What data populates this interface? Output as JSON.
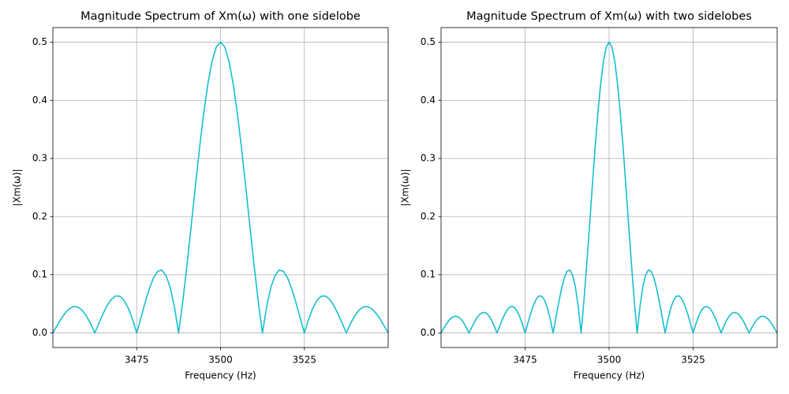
{
  "chart_data": [
    {
      "type": "line",
      "title": "Magnitude Spectrum of Xm(ω) with one sidelobe",
      "xlabel": "Frequency (Hz)",
      "ylabel": "|Xm(ω)|",
      "color": "#17becf",
      "grid": true,
      "xlim": [
        3450,
        3550
      ],
      "xticks": [
        3475,
        3500,
        3525
      ],
      "ylim": [
        -0.025,
        0.525
      ],
      "yticks": [
        {
          "value": 0,
          "label": "0.0"
        },
        0.1,
        0.2,
        0.3,
        0.4,
        0.5
      ],
      "x": [
        3450,
        3451.25,
        3452.5,
        3453.75,
        3455,
        3456.25,
        3457.5,
        3458.75,
        3460,
        3461.25,
        3462.5,
        3463.75,
        3465,
        3466.25,
        3467.5,
        3468.75,
        3470,
        3471.25,
        3472.5,
        3473.75,
        3475,
        3476.25,
        3477.5,
        3478.75,
        3480,
        3481.25,
        3482.5,
        3483.75,
        3485,
        3486.25,
        3487.5,
        3488.75,
        3490,
        3491.25,
        3492.5,
        3493.75,
        3495,
        3496.25,
        3497.5,
        3498.75,
        3500,
        3501.25,
        3502.5,
        3503.75,
        3505,
        3506.25,
        3507.5,
        3508.75,
        3510,
        3511.25,
        3512.5,
        3513.75,
        3515,
        3516.25,
        3517.5,
        3518.75,
        3520,
        3521.25,
        3522.5,
        3523.75,
        3525,
        3526.25,
        3527.5,
        3528.75,
        3530,
        3531.25,
        3532.5,
        3533.75,
        3535,
        3536.25,
        3537.5,
        3538.75,
        3540,
        3541.25,
        3542.5,
        3543.75,
        3545,
        3546.25,
        3547.5,
        3548.75,
        3550
      ],
      "values": [
        0,
        0.0126,
        0.0246,
        0.0348,
        0.042,
        0.0455,
        0.0445,
        0.039,
        0.0292,
        0.0159,
        0,
        0.017,
        0.0334,
        0.0477,
        0.0582,
        0.0637,
        0.0631,
        0.056,
        0.0425,
        0.0234,
        0,
        0.0259,
        0.052,
        0.0757,
        0.0946,
        0.1061,
        0.1081,
        0.099,
        0.078,
        0.0447,
        0,
        0.0546,
        0.1169,
        0.1839,
        0.2523,
        0.3183,
        0.3784,
        0.4292,
        0.4677,
        0.4918,
        0.5,
        0.4918,
        0.4677,
        0.4292,
        0.3784,
        0.3183,
        0.2523,
        0.1839,
        0.1169,
        0.0546,
        0,
        0.0447,
        0.078,
        0.099,
        0.1081,
        0.1061,
        0.0946,
        0.0757,
        0.052,
        0.0259,
        0,
        0.0234,
        0.0425,
        0.056,
        0.0631,
        0.0637,
        0.0582,
        0.0477,
        0.0334,
        0.017,
        0,
        0.0159,
        0.0292,
        0.039,
        0.0445,
        0.0455,
        0.042,
        0.0348,
        0.0246,
        0.0126,
        0
      ]
    },
    {
      "type": "line",
      "title": "Magnitude Spectrum of Xm(ω) with two sidelobes",
      "xlabel": "Frequency (Hz)",
      "ylabel": "|Xm(ω)|",
      "color": "#17becf",
      "grid": true,
      "xlim": [
        3450,
        3550
      ],
      "xticks": [
        3475,
        3500,
        3525
      ],
      "ylim": [
        -0.025,
        0.525
      ],
      "yticks": [
        {
          "value": 0,
          "label": "0.0"
        },
        0.1,
        0.2,
        0.3,
        0.4,
        0.5
      ],
      "x": [
        3450,
        3450.83,
        3451.67,
        3452.5,
        3453.33,
        3454.17,
        3455,
        3455.83,
        3456.67,
        3457.5,
        3458.33,
        3459.17,
        3460,
        3460.83,
        3461.67,
        3462.5,
        3463.33,
        3464.17,
        3465,
        3465.83,
        3466.67,
        3467.5,
        3468.33,
        3469.17,
        3470,
        3470.83,
        3471.67,
        3472.5,
        3473.33,
        3474.17,
        3475,
        3475.83,
        3476.67,
        3477.5,
        3478.33,
        3479.17,
        3480,
        3480.83,
        3481.67,
        3482.5,
        3483.33,
        3484.17,
        3485,
        3485.83,
        3486.67,
        3487.5,
        3488.33,
        3489.17,
        3490,
        3490.83,
        3491.67,
        3492.5,
        3493.33,
        3494.17,
        3495,
        3495.83,
        3496.67,
        3497.5,
        3498.33,
        3499.17,
        3500,
        3500.83,
        3501.67,
        3502.5,
        3503.33,
        3504.17,
        3505,
        3505.83,
        3506.67,
        3507.5,
        3508.33,
        3509.17,
        3510,
        3510.83,
        3511.67,
        3512.5,
        3513.33,
        3514.17,
        3515,
        3515.83,
        3516.67,
        3517.5,
        3518.33,
        3519.17,
        3520,
        3520.83,
        3521.67,
        3522.5,
        3523.33,
        3524.17,
        3525,
        3525.83,
        3526.67,
        3527.5,
        3528.33,
        3529.17,
        3530,
        3530.83,
        3531.67,
        3532.5,
        3533.33,
        3534.17,
        3535,
        3535.83,
        3536.67,
        3537.5,
        3538.33,
        3539.17,
        3540,
        3540.83,
        3541.67,
        3542.5,
        3543.33,
        3544.17,
        3545,
        3545.83,
        3546.67,
        3547.5,
        3548.33,
        3549.17,
        3550
      ],
      "values": [
        0,
        0.0083,
        0.0161,
        0.0226,
        0.027,
        0.0289,
        0.028,
        0.0243,
        0.018,
        0.0096,
        0,
        0.01,
        0.0195,
        0.0274,
        0.0329,
        0.0354,
        0.0344,
        0.0299,
        0.0223,
        0.012,
        0,
        0.0126,
        0.0246,
        0.0348,
        0.042,
        0.0455,
        0.0445,
        0.039,
        0.0292,
        0.0159,
        0,
        0.017,
        0.0334,
        0.0477,
        0.0582,
        0.0637,
        0.0631,
        0.056,
        0.0425,
        0.0234,
        0,
        0.0259,
        0.052,
        0.0757,
        0.0946,
        0.1061,
        0.1081,
        0.099,
        0.078,
        0.0447,
        0,
        0.0546,
        0.1169,
        0.1839,
        0.2523,
        0.3183,
        0.3784,
        0.4292,
        0.4677,
        0.4918,
        0.5,
        0.4918,
        0.4677,
        0.4292,
        0.3784,
        0.3183,
        0.2523,
        0.1839,
        0.1169,
        0.0546,
        0,
        0.0447,
        0.078,
        0.099,
        0.1081,
        0.1061,
        0.0946,
        0.0757,
        0.052,
        0.0259,
        0,
        0.0234,
        0.0425,
        0.056,
        0.0631,
        0.0637,
        0.0582,
        0.0477,
        0.0334,
        0.017,
        0,
        0.0159,
        0.0292,
        0.039,
        0.0445,
        0.0455,
        0.042,
        0.0348,
        0.0246,
        0.0126,
        0,
        0.012,
        0.0223,
        0.0299,
        0.0344,
        0.0354,
        0.0329,
        0.0274,
        0.0195,
        0.01,
        0,
        0.0096,
        0.018,
        0.0243,
        0.028,
        0.0289,
        0.027,
        0.0226,
        0.0161,
        0.0083,
        0
      ]
    }
  ]
}
